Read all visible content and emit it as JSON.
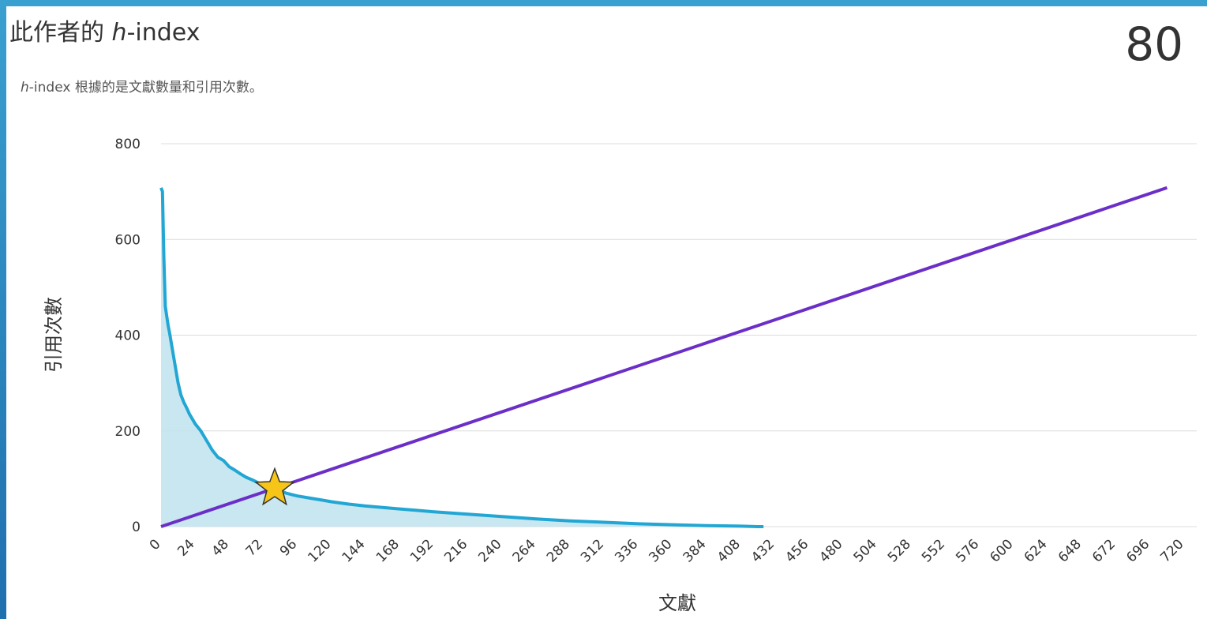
{
  "header": {
    "title_prefix": "此作者的 ",
    "title_h": "h",
    "title_suffix": "-index",
    "subtitle_h": "h",
    "subtitle_rest": "-index 根據的是文獻數量和引用次數。",
    "h_index_value": "80"
  },
  "colors": {
    "citations_line": "#22a6d3",
    "citations_fill": "#bfe3ef",
    "diagonal": "#6b2fc8",
    "star_fill": "#f7c517",
    "star_stroke": "#333333",
    "grid": "#dcdcdc"
  },
  "chart_data": {
    "type": "area",
    "xlabel": "文獻",
    "ylabel": "引用次數",
    "xlim": [
      0,
      720
    ],
    "ylim": [
      0,
      800
    ],
    "x_ticks": [
      0,
      24,
      48,
      72,
      96,
      120,
      144,
      168,
      192,
      216,
      240,
      264,
      288,
      312,
      336,
      360,
      384,
      408,
      432,
      456,
      480,
      504,
      528,
      552,
      576,
      600,
      624,
      648,
      672,
      696,
      720
    ],
    "y_ticks": [
      0,
      200,
      400,
      600,
      800
    ],
    "grid": "horizontal",
    "series": [
      {
        "kind": "area",
        "x": [
          0,
          1,
          2,
          3,
          4,
          5,
          6,
          8,
          10,
          12,
          14,
          16,
          18,
          20,
          24,
          28,
          32,
          36,
          40,
          44,
          48,
          52,
          56,
          60,
          64,
          68,
          72,
          76,
          80,
          84,
          88,
          92,
          96,
          104,
          112,
          120,
          132,
          144,
          156,
          168,
          180,
          192,
          216,
          240,
          264,
          288,
          312,
          336,
          360,
          384,
          408,
          420,
          424
        ],
        "values": [
          708,
          700,
          560,
          460,
          440,
          420,
          405,
          370,
          335,
          300,
          275,
          260,
          248,
          235,
          215,
          200,
          180,
          160,
          145,
          138,
          125,
          118,
          110,
          103,
          98,
          92,
          88,
          84,
          80,
          75,
          70,
          67,
          64,
          60,
          56,
          52,
          47,
          43,
          40,
          37,
          34,
          31,
          26,
          21,
          16,
          12,
          9,
          6,
          4,
          2,
          1,
          0,
          0
        ]
      },
      {
        "kind": "line",
        "x": [
          0,
          708
        ],
        "values": [
          0,
          708
        ]
      }
    ],
    "marker": {
      "shape": "star",
      "x": 80,
      "y": 80
    }
  }
}
